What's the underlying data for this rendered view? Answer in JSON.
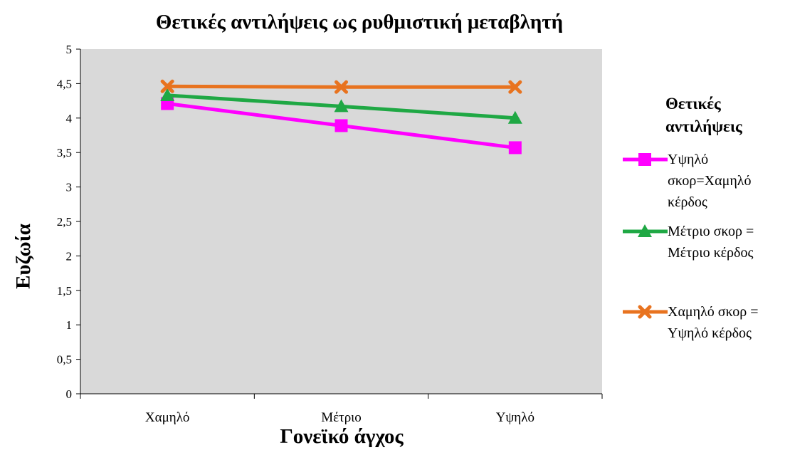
{
  "chart_data": {
    "type": "line",
    "title": "Θετικές αντιλήψεις ως ρυθμιστική μεταβλητή",
    "xlabel": "Γονεϊκό άγχος",
    "ylabel": "Ευζωία",
    "categories": [
      "Χαμηλό",
      "Μέτριο",
      "Υψηλό"
    ],
    "ylim": [
      0,
      5
    ],
    "yticks": [
      "0",
      "0,5",
      "1",
      "1,5",
      "2",
      "2,5",
      "3",
      "3,5",
      "4",
      "4,5",
      "5"
    ],
    "grid": false,
    "plot_background": "#d9d9d9",
    "legend_position": "right",
    "legend_title_lines": [
      "Θετικές",
      "αντιλήψεις"
    ],
    "series": [
      {
        "name": "Υψηλό σκορ=Χαμηλό κέρδος",
        "name_lines": [
          "Υψηλό",
          "σκορ=Χαμηλό",
          "κέρδος"
        ],
        "values": [
          4.21,
          3.89,
          3.57
        ],
        "color": "#ff00ff",
        "marker": "square"
      },
      {
        "name": "Μέτριο σκορ = Μέτριο κέρδος",
        "name_lines": [
          "Μέτριο σκορ =",
          "Μέτριο κέρδος"
        ],
        "values": [
          4.33,
          4.17,
          4.0
        ],
        "color": "#1fa844",
        "marker": "triangle"
      },
      {
        "name": "Χαμηλό σκορ = Υψηλό κέρδος",
        "name_lines": [
          "Χαμηλό σκορ =",
          "Υψηλό κέρδος"
        ],
        "values": [
          4.46,
          4.45,
          4.45
        ],
        "color": "#e8731f",
        "marker": "x"
      }
    ]
  }
}
